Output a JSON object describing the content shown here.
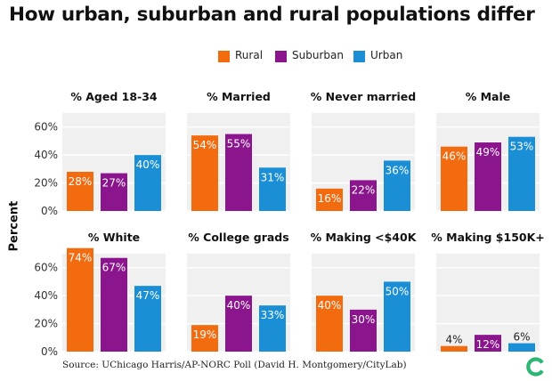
{
  "title": "How urban, suburban and rural populations differ",
  "ylabel": "Percent",
  "source": "Source: UChicago Harris/AP-NORC Poll (David H. Montgomery/CityLab)",
  "colors": {
    "Rural": "#f26b0f",
    "Suburban": "#8b158c",
    "Urban": "#1a8fd6"
  },
  "logo_icon": "citylab-logo-icon",
  "chart_data": {
    "type": "bar",
    "legend_position": "top-center",
    "categories": [
      "Rural",
      "Suburban",
      "Urban"
    ],
    "panels": [
      {
        "title": "% Aged 18-34",
        "values": [
          28,
          27,
          40
        ],
        "labels": [
          "28%",
          "27%",
          "40%"
        ]
      },
      {
        "title": "% Married",
        "values": [
          54,
          55,
          31
        ],
        "labels": [
          "54%",
          "55%",
          "31%"
        ]
      },
      {
        "title": "% Never married",
        "values": [
          16,
          22,
          36
        ],
        "labels": [
          "16%",
          "22%",
          "36%"
        ]
      },
      {
        "title": "% Male",
        "values": [
          46,
          49,
          53
        ],
        "labels": [
          "46%",
          "49%",
          "53%"
        ]
      },
      {
        "title": "% White",
        "values": [
          74,
          67,
          47
        ],
        "labels": [
          "74%",
          "67%",
          "47%"
        ]
      },
      {
        "title": "% College grads",
        "values": [
          19,
          40,
          33
        ],
        "labels": [
          "19%",
          "40%",
          "33%"
        ]
      },
      {
        "title": "% Making <$40K",
        "values": [
          40,
          30,
          50
        ],
        "labels": [
          "40%",
          "30%",
          "50%"
        ]
      },
      {
        "title": "% Making $150K+",
        "values": [
          4,
          12,
          6
        ],
        "labels": [
          "4%",
          "12%",
          "6%"
        ]
      }
    ],
    "yticks": [
      "0%",
      "20%",
      "40%",
      "60%"
    ],
    "ytick_values": [
      0,
      20,
      40,
      60
    ],
    "ylim": [
      0,
      70
    ],
    "grid": true
  }
}
